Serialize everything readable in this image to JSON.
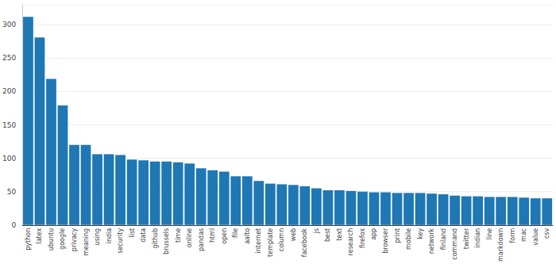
{
  "chart_data": {
    "type": "bar",
    "categories": [
      "python",
      "latex",
      "ubuntu",
      "google",
      "privacy",
      "meaning",
      "using",
      "india",
      "security",
      "list",
      "data",
      "github",
      "brussels",
      "time",
      "online",
      "pandas",
      "html",
      "open",
      "file",
      "aalto",
      "internet",
      "template",
      "column",
      "web",
      "facebook",
      "js",
      "best",
      "text",
      "research",
      "firefox",
      "app",
      "browser",
      "print",
      "mobile",
      "key",
      "network",
      "finland",
      "command",
      "twitter",
      "indian",
      "line",
      "markdown",
      "form",
      "mac",
      "value",
      "csv"
    ],
    "values": [
      312,
      281,
      219,
      179,
      120,
      120,
      106,
      106,
      105,
      98,
      97,
      95,
      95,
      94,
      92,
      85,
      82,
      80,
      73,
      73,
      66,
      62,
      61,
      60,
      58,
      55,
      52,
      52,
      51,
      50,
      49,
      49,
      48,
      48,
      48,
      47,
      46,
      44,
      43,
      43,
      42,
      42,
      42,
      41,
      40,
      40
    ],
    "color": "#1f77b4",
    "ylim": [
      0,
      330
    ],
    "yticks": [
      0,
      50,
      100,
      150,
      200,
      250,
      300
    ],
    "grid": true
  }
}
